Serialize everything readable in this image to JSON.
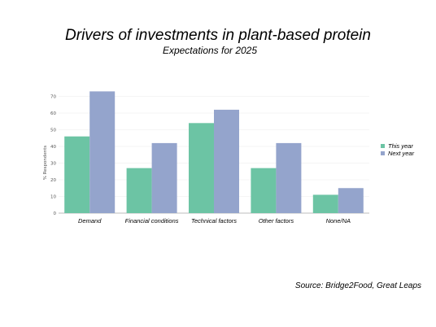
{
  "chart_data": {
    "type": "bar",
    "title": "Drivers of investments in plant-based protein",
    "subtitle": "Expectations for 2025",
    "ylabel": "% Respondents",
    "xlabel": "",
    "ylim": [
      0,
      80
    ],
    "yticks": [
      0,
      10,
      20,
      30,
      40,
      50,
      60,
      70
    ],
    "grid": true,
    "legend_position": "right",
    "categories": [
      "Demand",
      "Financial conditions",
      "Technical factors",
      "Other factors",
      "None/NA"
    ],
    "series": [
      {
        "name": "This year",
        "color": "#6cc4a4",
        "values": [
          46,
          27,
          54,
          27,
          11
        ]
      },
      {
        "name": "Next year",
        "color": "#94a4cc",
        "values": [
          73,
          42,
          62,
          42,
          15
        ]
      }
    ],
    "source": "Source: Bridge2Food, Great Leaps"
  }
}
